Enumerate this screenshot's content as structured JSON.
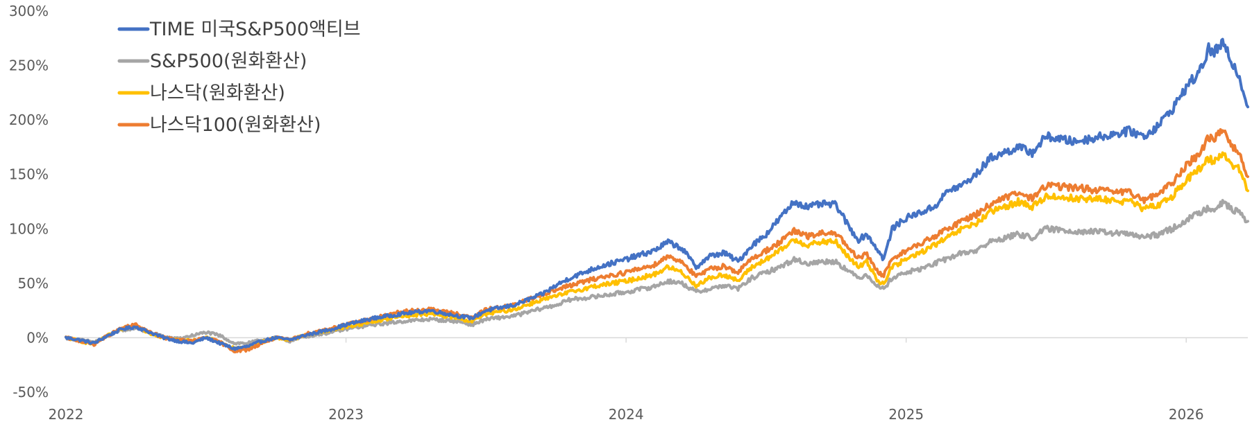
{
  "chart_data": {
    "type": "line",
    "title": "",
    "xlabel": "",
    "ylabel": "",
    "y_unit": "%",
    "ylim": [
      -50,
      300
    ],
    "xlim": [
      2022.0,
      2026.22
    ],
    "y_ticks": [
      -50,
      0,
      50,
      100,
      150,
      200,
      250,
      300
    ],
    "y_tick_labels": [
      "-50%",
      "0%",
      "50%",
      "100%",
      "150%",
      "200%",
      "250%",
      "300%"
    ],
    "x_ticks": [
      2022,
      2023,
      2024,
      2025,
      2026
    ],
    "x_tick_labels": [
      "2022",
      "2023",
      "2024",
      "2025",
      "2026"
    ],
    "grid": false,
    "legend_position": "top-left",
    "series": [
      {
        "name": "TIME 미국S&P500액티브",
        "color": "#4472C4",
        "x": [
          2022.0,
          2022.05,
          2022.1,
          2022.15,
          2022.2,
          2022.25,
          2022.3,
          2022.35,
          2022.4,
          2022.45,
          2022.5,
          2022.55,
          2022.6,
          2022.65,
          2022.7,
          2022.75,
          2022.8,
          2022.85,
          2022.9,
          2022.95,
          2023.0,
          2023.1,
          2023.2,
          2023.3,
          2023.4,
          2023.45,
          2023.5,
          2023.6,
          2023.7,
          2023.75,
          2023.8,
          2023.9,
          2024.0,
          2024.1,
          2024.15,
          2024.2,
          2024.25,
          2024.3,
          2024.35,
          2024.4,
          2024.45,
          2024.5,
          2024.55,
          2024.6,
          2024.65,
          2024.7,
          2024.75,
          2024.8,
          2024.83,
          2024.86,
          2024.9,
          2024.92,
          2024.95,
          2025.0,
          2025.05,
          2025.1,
          2025.15,
          2025.2,
          2025.25,
          2025.3,
          2025.4,
          2025.45,
          2025.5,
          2025.6,
          2025.7,
          2025.8,
          2025.85,
          2025.9,
          2025.95,
          2026.0,
          2026.05,
          2026.08,
          2026.1,
          2026.13,
          2026.16,
          2026.19,
          2026.22
        ],
        "values": [
          0,
          -2,
          -5,
          2,
          8,
          10,
          5,
          0,
          -3,
          -5,
          0,
          -5,
          -10,
          -8,
          -3,
          0,
          -2,
          2,
          5,
          8,
          12,
          18,
          22,
          25,
          20,
          18,
          25,
          30,
          40,
          48,
          55,
          65,
          72,
          80,
          88,
          82,
          65,
          75,
          78,
          70,
          85,
          95,
          110,
          125,
          120,
          123,
          122,
          100,
          90,
          95,
          80,
          72,
          100,
          110,
          115,
          120,
          135,
          140,
          150,
          165,
          175,
          170,
          185,
          180,
          185,
          190,
          185,
          195,
          210,
          230,
          245,
          265,
          262,
          270,
          255,
          240,
          212
        ]
      },
      {
        "name": "S&P500(원화환산)",
        "color": "#A5A5A5",
        "x": [
          2022.0,
          2022.05,
          2022.1,
          2022.15,
          2022.2,
          2022.25,
          2022.3,
          2022.35,
          2022.4,
          2022.45,
          2022.5,
          2022.55,
          2022.6,
          2022.65,
          2022.7,
          2022.75,
          2022.8,
          2022.85,
          2022.9,
          2022.95,
          2023.0,
          2023.1,
          2023.2,
          2023.3,
          2023.4,
          2023.45,
          2023.5,
          2023.6,
          2023.7,
          2023.75,
          2023.8,
          2023.9,
          2024.0,
          2024.1,
          2024.15,
          2024.2,
          2024.25,
          2024.3,
          2024.35,
          2024.4,
          2024.45,
          2024.5,
          2024.55,
          2024.6,
          2024.65,
          2024.7,
          2024.75,
          2024.8,
          2024.83,
          2024.86,
          2024.9,
          2024.92,
          2024.95,
          2025.0,
          2025.05,
          2025.1,
          2025.15,
          2025.2,
          2025.25,
          2025.3,
          2025.4,
          2025.45,
          2025.5,
          2025.6,
          2025.7,
          2025.8,
          2025.85,
          2025.9,
          2025.95,
          2026.0,
          2026.05,
          2026.08,
          2026.1,
          2026.13,
          2026.16,
          2026.19,
          2026.22
        ],
        "values": [
          0,
          -2,
          -4,
          2,
          7,
          9,
          5,
          1,
          -1,
          2,
          5,
          2,
          -5,
          -5,
          -2,
          0,
          -3,
          1,
          3,
          5,
          8,
          12,
          15,
          17,
          15,
          12,
          17,
          20,
          27,
          30,
          35,
          38,
          42,
          47,
          52,
          50,
          42,
          45,
          48,
          45,
          55,
          60,
          65,
          72,
          68,
          70,
          70,
          60,
          55,
          58,
          47,
          45,
          55,
          60,
          63,
          68,
          73,
          78,
          80,
          88,
          95,
          92,
          100,
          98,
          97,
          95,
          92,
          95,
          100,
          108,
          115,
          120,
          118,
          125,
          118,
          115,
          107
        ]
      },
      {
        "name": "나스닥(원화환산)",
        "color": "#FFC000",
        "x": [
          2022.0,
          2022.05,
          2022.1,
          2022.15,
          2022.2,
          2022.25,
          2022.3,
          2022.35,
          2022.4,
          2022.45,
          2022.5,
          2022.55,
          2022.6,
          2022.65,
          2022.7,
          2022.75,
          2022.8,
          2022.85,
          2022.9,
          2022.95,
          2023.0,
          2023.1,
          2023.2,
          2023.3,
          2023.4,
          2023.45,
          2023.5,
          2023.6,
          2023.7,
          2023.75,
          2023.8,
          2023.9,
          2024.0,
          2024.1,
          2024.15,
          2024.2,
          2024.25,
          2024.3,
          2024.35,
          2024.4,
          2024.45,
          2024.5,
          2024.55,
          2024.6,
          2024.65,
          2024.7,
          2024.75,
          2024.8,
          2024.83,
          2024.86,
          2024.9,
          2024.92,
          2024.95,
          2025.0,
          2025.05,
          2025.1,
          2025.15,
          2025.2,
          2025.25,
          2025.3,
          2025.4,
          2025.45,
          2025.5,
          2025.6,
          2025.7,
          2025.8,
          2025.85,
          2025.9,
          2025.95,
          2026.0,
          2026.05,
          2026.08,
          2026.1,
          2026.13,
          2026.16,
          2026.19,
          2026.22
        ],
        "values": [
          0,
          -3,
          -6,
          2,
          8,
          11,
          4,
          0,
          -2,
          -3,
          0,
          -4,
          -10,
          -9,
          -4,
          0,
          -2,
          2,
          5,
          7,
          10,
          15,
          20,
          22,
          18,
          15,
          22,
          26,
          35,
          38,
          42,
          48,
          52,
          58,
          65,
          60,
          48,
          55,
          58,
          52,
          65,
          72,
          80,
          90,
          85,
          88,
          88,
          72,
          65,
          70,
          52,
          50,
          65,
          72,
          78,
          85,
          92,
          100,
          105,
          115,
          125,
          120,
          130,
          128,
          127,
          125,
          118,
          122,
          130,
          145,
          155,
          165,
          162,
          170,
          160,
          155,
          135
        ]
      },
      {
        "name": "나스닥100(원화환산)",
        "color": "#ED7D31",
        "x": [
          2022.0,
          2022.05,
          2022.1,
          2022.15,
          2022.2,
          2022.25,
          2022.3,
          2022.35,
          2022.4,
          2022.45,
          2022.5,
          2022.55,
          2022.6,
          2022.65,
          2022.7,
          2022.75,
          2022.8,
          2022.85,
          2022.9,
          2022.95,
          2023.0,
          2023.1,
          2023.2,
          2023.3,
          2023.4,
          2023.45,
          2023.5,
          2023.6,
          2023.7,
          2023.75,
          2023.8,
          2023.9,
          2024.0,
          2024.1,
          2024.15,
          2024.2,
          2024.25,
          2024.3,
          2024.35,
          2024.4,
          2024.45,
          2024.5,
          2024.55,
          2024.6,
          2024.65,
          2024.7,
          2024.75,
          2024.8,
          2024.83,
          2024.86,
          2024.9,
          2024.92,
          2024.95,
          2025.0,
          2025.05,
          2025.1,
          2025.15,
          2025.2,
          2025.25,
          2025.3,
          2025.4,
          2025.45,
          2025.5,
          2025.6,
          2025.7,
          2025.8,
          2025.85,
          2025.9,
          2025.95,
          2026.0,
          2026.05,
          2026.08,
          2026.1,
          2026.13,
          2026.16,
          2026.19,
          2026.22
        ],
        "values": [
          0,
          -3,
          -6,
          2,
          9,
          12,
          5,
          0,
          -2,
          -3,
          0,
          -4,
          -12,
          -11,
          -5,
          0,
          -2,
          3,
          6,
          9,
          12,
          18,
          24,
          26,
          22,
          18,
          26,
          30,
          40,
          44,
          48,
          55,
          60,
          67,
          75,
          70,
          56,
          63,
          66,
          60,
          73,
          80,
          88,
          98,
          93,
          96,
          96,
          80,
          73,
          77,
          60,
          57,
          73,
          80,
          86,
          93,
          100,
          108,
          113,
          123,
          133,
          128,
          140,
          138,
          135,
          133,
          127,
          132,
          142,
          158,
          170,
          185,
          182,
          192,
          178,
          170,
          148
        ]
      }
    ]
  }
}
